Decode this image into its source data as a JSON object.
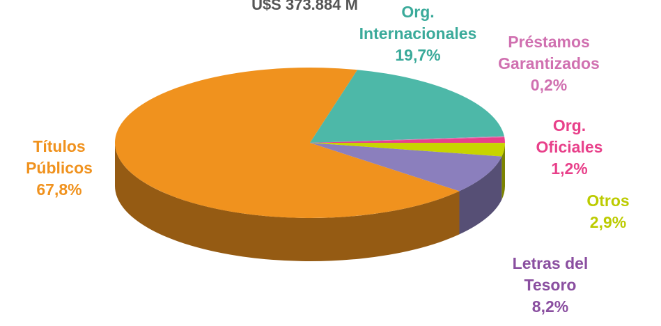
{
  "chart_data": {
    "type": "pie",
    "title": "U$S 373.884 M",
    "categories": [
      "Títulos Públicos",
      "Org. Internacionales",
      "Préstamos Garantizados",
      "Org. Oficiales",
      "Otros",
      "Letras del Tesoro"
    ],
    "values": [
      67.8,
      19.7,
      0.2,
      1.2,
      2.9,
      8.2
    ],
    "value_labels": [
      "67,8%",
      "19,7%",
      "0,2%",
      "1,2%",
      "2,9%",
      "8,2%"
    ],
    "colors": [
      "#f0921e",
      "#4db8a8",
      "#d77fb8",
      "#e8408a",
      "#c8d400",
      "#8b7fbd"
    ],
    "label_colors": [
      "#f0921e",
      "#3aaa9a",
      "#d070b0",
      "#e8408a",
      "#bccb00",
      "#8a4fa0"
    ]
  }
}
